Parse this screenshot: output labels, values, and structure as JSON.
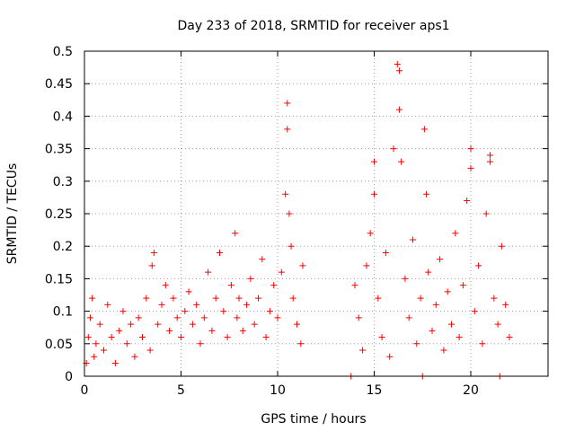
{
  "chart_data": {
    "type": "scatter",
    "title": "Day 233 of 2018, SRMTID for receiver aps1",
    "xlabel": "GPS time / hours",
    "ylabel": "SRMTID / TECUs",
    "xlim": [
      0,
      24
    ],
    "ylim": [
      0,
      0.5
    ],
    "x_ticks": [
      0,
      5,
      10,
      15,
      20
    ],
    "y_ticks": [
      0,
      0.05,
      0.1,
      0.15,
      0.2,
      0.25,
      0.3,
      0.35,
      0.4,
      0.45,
      0.5
    ],
    "x_tick_labels": [
      "0",
      "5",
      "10",
      "15",
      "20"
    ],
    "y_tick_labels": [
      "0",
      "0.05",
      "0.1",
      "0.15",
      "0.2",
      "0.25",
      "0.3",
      "0.35",
      "0.4",
      "0.45",
      "0.5"
    ],
    "grid": true,
    "marker": "+",
    "color": "#ff0000",
    "series": [
      {
        "name": "SRMTID",
        "points": [
          [
            0.1,
            0.02
          ],
          [
            0.2,
            0.06
          ],
          [
            0.3,
            0.09
          ],
          [
            0.4,
            0.12
          ],
          [
            0.5,
            0.03
          ],
          [
            0.6,
            0.05
          ],
          [
            0.8,
            0.08
          ],
          [
            1.0,
            0.04
          ],
          [
            1.2,
            0.11
          ],
          [
            1.4,
            0.06
          ],
          [
            1.6,
            0.02
          ],
          [
            1.8,
            0.07
          ],
          [
            2.0,
            0.1
          ],
          [
            2.2,
            0.05
          ],
          [
            2.4,
            0.08
          ],
          [
            2.6,
            0.03
          ],
          [
            2.8,
            0.09
          ],
          [
            3.0,
            0.06
          ],
          [
            3.2,
            0.12
          ],
          [
            3.4,
            0.04
          ],
          [
            3.5,
            0.17
          ],
          [
            3.6,
            0.19
          ],
          [
            3.8,
            0.08
          ],
          [
            4.0,
            0.11
          ],
          [
            4.2,
            0.14
          ],
          [
            4.4,
            0.07
          ],
          [
            4.6,
            0.12
          ],
          [
            4.8,
            0.09
          ],
          [
            5.0,
            0.06
          ],
          [
            5.2,
            0.1
          ],
          [
            5.4,
            0.13
          ],
          [
            5.6,
            0.08
          ],
          [
            5.8,
            0.11
          ],
          [
            6.0,
            0.05
          ],
          [
            6.2,
            0.09
          ],
          [
            6.4,
            0.16
          ],
          [
            6.6,
            0.07
          ],
          [
            6.8,
            0.12
          ],
          [
            7.0,
            0.19
          ],
          [
            7.2,
            0.1
          ],
          [
            7.4,
            0.06
          ],
          [
            7.6,
            0.14
          ],
          [
            7.8,
            0.22
          ],
          [
            7.9,
            0.09
          ],
          [
            8.0,
            0.12
          ],
          [
            8.2,
            0.07
          ],
          [
            8.4,
            0.11
          ],
          [
            8.6,
            0.15
          ],
          [
            8.8,
            0.08
          ],
          [
            9.0,
            0.12
          ],
          [
            9.2,
            0.18
          ],
          [
            9.4,
            0.06
          ],
          [
            9.6,
            0.1
          ],
          [
            9.8,
            0.14
          ],
          [
            10.0,
            0.09
          ],
          [
            10.2,
            0.16
          ],
          [
            10.4,
            0.28
          ],
          [
            10.5,
            0.42
          ],
          [
            10.5,
            0.38
          ],
          [
            10.6,
            0.25
          ],
          [
            10.7,
            0.2
          ],
          [
            10.8,
            0.12
          ],
          [
            11.0,
            0.08
          ],
          [
            11.2,
            0.05
          ],
          [
            11.3,
            0.17
          ],
          [
            13.8,
            0.0
          ],
          [
            14.0,
            0.14
          ],
          [
            14.2,
            0.09
          ],
          [
            14.4,
            0.04
          ],
          [
            14.6,
            0.17
          ],
          [
            14.8,
            0.22
          ],
          [
            15.0,
            0.33
          ],
          [
            15.0,
            0.28
          ],
          [
            15.2,
            0.12
          ],
          [
            15.4,
            0.06
          ],
          [
            15.6,
            0.19
          ],
          [
            15.8,
            0.03
          ],
          [
            16.0,
            0.35
          ],
          [
            16.2,
            0.48
          ],
          [
            16.3,
            0.47
          ],
          [
            16.3,
            0.41
          ],
          [
            16.4,
            0.33
          ],
          [
            16.6,
            0.15
          ],
          [
            16.8,
            0.09
          ],
          [
            17.0,
            0.21
          ],
          [
            17.2,
            0.05
          ],
          [
            17.4,
            0.12
          ],
          [
            17.5,
            0.0
          ],
          [
            17.6,
            0.38
          ],
          [
            17.7,
            0.28
          ],
          [
            17.8,
            0.16
          ],
          [
            18.0,
            0.07
          ],
          [
            18.2,
            0.11
          ],
          [
            18.4,
            0.18
          ],
          [
            18.6,
            0.04
          ],
          [
            18.8,
            0.13
          ],
          [
            19.0,
            0.08
          ],
          [
            19.2,
            0.22
          ],
          [
            19.4,
            0.06
          ],
          [
            19.6,
            0.14
          ],
          [
            19.8,
            0.27
          ],
          [
            20.0,
            0.35
          ],
          [
            20.0,
            0.32
          ],
          [
            20.2,
            0.1
          ],
          [
            20.4,
            0.17
          ],
          [
            20.6,
            0.05
          ],
          [
            20.8,
            0.25
          ],
          [
            21.0,
            0.34
          ],
          [
            21.0,
            0.33
          ],
          [
            21.2,
            0.12
          ],
          [
            21.4,
            0.08
          ],
          [
            21.5,
            0.0
          ],
          [
            21.6,
            0.2
          ],
          [
            21.8,
            0.11
          ],
          [
            22.0,
            0.06
          ]
        ]
      }
    ]
  }
}
